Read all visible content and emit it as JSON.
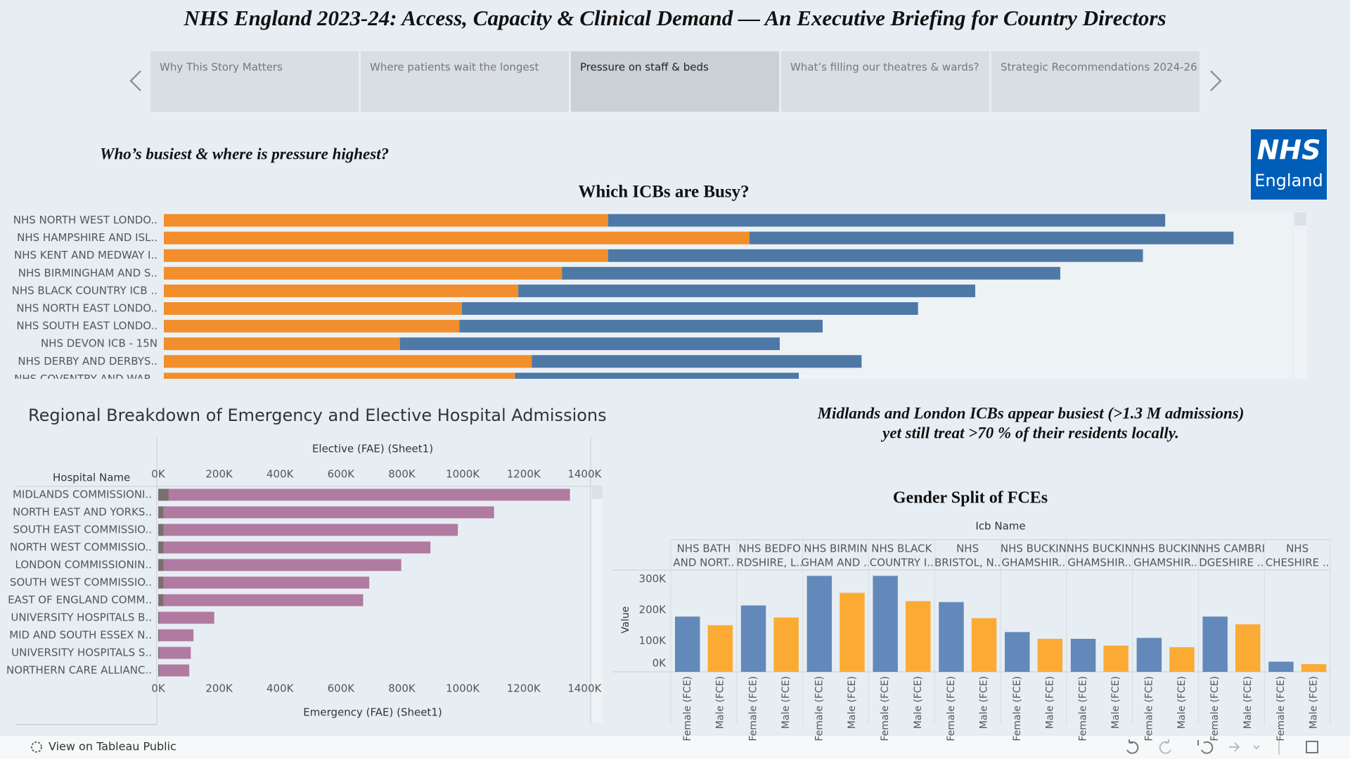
{
  "header": {
    "title": "NHS England 2023-24: Access, Capacity & Clinical Demand — An Executive Briefing for Country Directors"
  },
  "nav": {
    "tabs": [
      "Why This Story Matters",
      "Where patients wait the longest",
      "Pressure on staff & beds",
      "What’s filling our theatres & wards?",
      "Strategic Recommendations 2024-26"
    ],
    "selected": 2
  },
  "subtitle": "Who’s busiest & where is pressure highest?",
  "logo": {
    "line1": "NHS",
    "line2": "England"
  },
  "annotation": [
    "Midlands and London ICBs appear busiest (>1.3 M admissions)",
    "yet still treat >70 % of their residents locally."
  ],
  "footer": {
    "link": "View on Tableau Public"
  },
  "chart_data": [
    {
      "type": "bar",
      "orientation": "horizontal",
      "stacked": true,
      "title": "Which ICBs are Busy?",
      "categories": [
        "NHS NORTH WEST LONDO..",
        "NHS HAMPSHIRE AND ISL..",
        "NHS KENT AND MEDWAY I..",
        "NHS BIRMINGHAM AND S..",
        "NHS BLACK COUNTRY ICB ..",
        "NHS NORTH EAST LONDO..",
        "NHS SOUTH EAST LONDO..",
        "NHS DEVON ICB - 15N",
        "NHS DERBY AND DERBYS..",
        "NHS COVENTRY AND WAR.."
      ],
      "series": [
        {
          "color": "#f28e2b",
          "values": [
            559000,
            737000,
            559000,
            501000,
            446000,
            375000,
            372000,
            297000,
            463000,
            442000
          ]
        },
        {
          "color": "#4e79a7",
          "values": [
            701000,
            609000,
            673000,
            627000,
            575000,
            574000,
            457000,
            478000,
            415000,
            357000
          ]
        }
      ],
      "xlim": [
        0,
        1420000
      ]
    },
    {
      "type": "bar",
      "orientation": "horizontal",
      "stacked": false,
      "title": "Regional Breakdown of Emergency and Elective Hospital Admissions",
      "category_label": "Hospital Name",
      "categories": [
        "MIDLANDS COMMISSIONI..",
        "NORTH EAST AND YORKS..",
        "SOUTH EAST COMMISSIO..",
        "NORTH WEST COMMISSIO..",
        "LONDON COMMISSIONIN..",
        "SOUTH WEST COMMISSIO..",
        "EAST OF ENGLAND COMM..",
        "UNIVERSITY HOSPITALS B..",
        "MID AND SOUTH ESSEX N..",
        "UNIVERSITY HOSPITALS S..",
        "NORTHERN CARE ALLIANC.."
      ],
      "series": [
        {
          "name": "Emergency (FAE) (Sheet1)",
          "color": "#b07aa1",
          "values": [
            1352000,
            1103000,
            984000,
            894000,
            798000,
            693000,
            673000,
            184000,
            116000,
            107000,
            102000
          ]
        },
        {
          "name": "Elective (FAE) (Sheet1)",
          "color": "#79706e",
          "axis": "x2",
          "values": [
            34000,
            17000,
            17000,
            17000,
            17000,
            17000,
            17000,
            3000,
            3000,
            3000,
            3000
          ]
        }
      ],
      "xlim": [
        0,
        1420000
      ],
      "xticks": [
        {
          "value": 0,
          "label": "0K"
        },
        {
          "value": 200000,
          "label": "200K"
        },
        {
          "value": 400000,
          "label": "400K"
        },
        {
          "value": 600000,
          "label": "600K"
        },
        {
          "value": 800000,
          "label": "800K"
        },
        {
          "value": 1000000,
          "label": "1000K"
        },
        {
          "value": 1200000,
          "label": "1200K"
        },
        {
          "value": 1400000,
          "label": "1400K"
        }
      ],
      "x2lim": [
        0,
        1420000
      ],
      "x2ticks": [
        {
          "value": 0,
          "label": "0K"
        },
        {
          "value": 200000,
          "label": "200K"
        },
        {
          "value": 400000,
          "label": "400K"
        },
        {
          "value": 600000,
          "label": "600K"
        },
        {
          "value": 800000,
          "label": "800K"
        },
        {
          "value": 1000000,
          "label": "1000K"
        },
        {
          "value": 1200000,
          "label": "1200K"
        },
        {
          "value": 1400000,
          "label": "1400K"
        }
      ]
    },
    {
      "type": "bar",
      "orientation": "vertical",
      "stacked": false,
      "title": "Gender Split of FCEs",
      "category_label": "Icb Name",
      "ylabel": "Value",
      "categories": [
        [
          "NHS BATH",
          "AND NORT.."
        ],
        [
          "NHS BEDFO",
          "RDSHIRE, L.."
        ],
        [
          "NHS BIRMIN",
          "GHAM AND .."
        ],
        [
          "NHS BLACK",
          "COUNTRY I.."
        ],
        [
          "NHS",
          "BRISTOL, N.."
        ],
        [
          "NHS BUCKIN",
          "GHAMSHIR.."
        ],
        [
          "NHS BUCKIN",
          "GHAMSHIR.."
        ],
        [
          "NHS BUCKIN",
          "GHAMSHIR.."
        ],
        [
          "NHS CAMBRI",
          "DGESHIRE .."
        ],
        [
          "NHS",
          "CHESHIRE .."
        ]
      ],
      "series": [
        {
          "name": "Female (FCE)",
          "color": "#6389ba",
          "values": [
            179000,
            215000,
            311000,
            311000,
            226000,
            129000,
            107000,
            110000,
            179000,
            33000
          ]
        },
        {
          "name": "Male (FCE)",
          "color": "#fbab34",
          "values": [
            151000,
            176000,
            256000,
            229000,
            174000,
            107000,
            85000,
            80000,
            154000,
            25000
          ]
        }
      ],
      "ylim": [
        0,
        330000
      ],
      "yticks": [
        {
          "value": 0,
          "label": "0K"
        },
        {
          "value": 100000,
          "label": "100K"
        },
        {
          "value": 200000,
          "label": "200K"
        },
        {
          "value": 300000,
          "label": "300K"
        }
      ]
    }
  ]
}
